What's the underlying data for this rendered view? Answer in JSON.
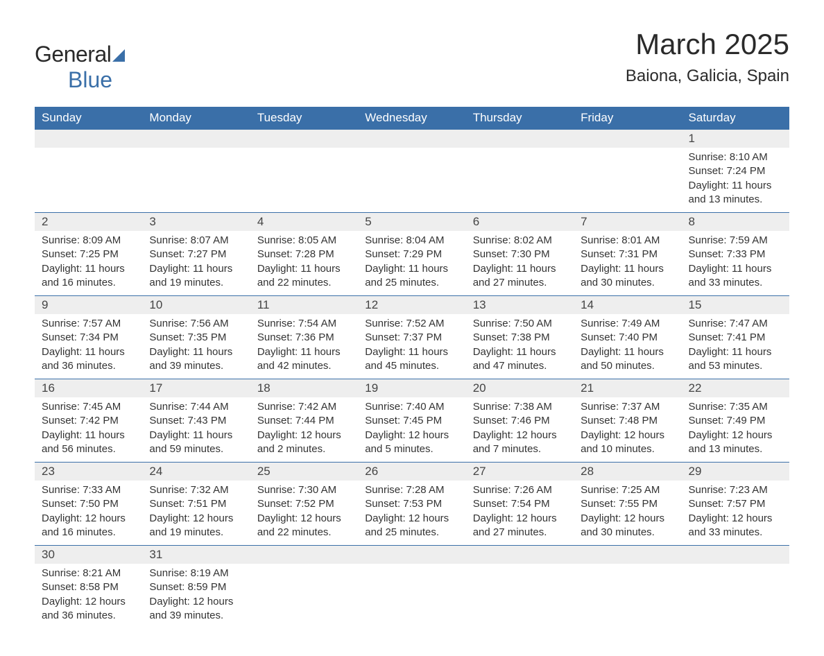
{
  "brand": {
    "general": "General",
    "blue": "Blue"
  },
  "title": "March 2025",
  "location": "Baiona, Galicia, Spain",
  "colors": {
    "header_bg": "#3a6fa8",
    "header_text": "#ffffff",
    "daynum_bg": "#eeeeee",
    "text": "#333333",
    "border": "#3a6fa8"
  },
  "weekdays": [
    "Sunday",
    "Monday",
    "Tuesday",
    "Wednesday",
    "Thursday",
    "Friday",
    "Saturday"
  ],
  "weeks": [
    [
      {
        "empty": true
      },
      {
        "empty": true
      },
      {
        "empty": true
      },
      {
        "empty": true
      },
      {
        "empty": true
      },
      {
        "empty": true
      },
      {
        "num": "1",
        "sunrise": "Sunrise: 8:10 AM",
        "sunset": "Sunset: 7:24 PM",
        "daylight": "Daylight: 11 hours and 13 minutes."
      }
    ],
    [
      {
        "num": "2",
        "sunrise": "Sunrise: 8:09 AM",
        "sunset": "Sunset: 7:25 PM",
        "daylight": "Daylight: 11 hours and 16 minutes."
      },
      {
        "num": "3",
        "sunrise": "Sunrise: 8:07 AM",
        "sunset": "Sunset: 7:27 PM",
        "daylight": "Daylight: 11 hours and 19 minutes."
      },
      {
        "num": "4",
        "sunrise": "Sunrise: 8:05 AM",
        "sunset": "Sunset: 7:28 PM",
        "daylight": "Daylight: 11 hours and 22 minutes."
      },
      {
        "num": "5",
        "sunrise": "Sunrise: 8:04 AM",
        "sunset": "Sunset: 7:29 PM",
        "daylight": "Daylight: 11 hours and 25 minutes."
      },
      {
        "num": "6",
        "sunrise": "Sunrise: 8:02 AM",
        "sunset": "Sunset: 7:30 PM",
        "daylight": "Daylight: 11 hours and 27 minutes."
      },
      {
        "num": "7",
        "sunrise": "Sunrise: 8:01 AM",
        "sunset": "Sunset: 7:31 PM",
        "daylight": "Daylight: 11 hours and 30 minutes."
      },
      {
        "num": "8",
        "sunrise": "Sunrise: 7:59 AM",
        "sunset": "Sunset: 7:33 PM",
        "daylight": "Daylight: 11 hours and 33 minutes."
      }
    ],
    [
      {
        "num": "9",
        "sunrise": "Sunrise: 7:57 AM",
        "sunset": "Sunset: 7:34 PM",
        "daylight": "Daylight: 11 hours and 36 minutes."
      },
      {
        "num": "10",
        "sunrise": "Sunrise: 7:56 AM",
        "sunset": "Sunset: 7:35 PM",
        "daylight": "Daylight: 11 hours and 39 minutes."
      },
      {
        "num": "11",
        "sunrise": "Sunrise: 7:54 AM",
        "sunset": "Sunset: 7:36 PM",
        "daylight": "Daylight: 11 hours and 42 minutes."
      },
      {
        "num": "12",
        "sunrise": "Sunrise: 7:52 AM",
        "sunset": "Sunset: 7:37 PM",
        "daylight": "Daylight: 11 hours and 45 minutes."
      },
      {
        "num": "13",
        "sunrise": "Sunrise: 7:50 AM",
        "sunset": "Sunset: 7:38 PM",
        "daylight": "Daylight: 11 hours and 47 minutes."
      },
      {
        "num": "14",
        "sunrise": "Sunrise: 7:49 AM",
        "sunset": "Sunset: 7:40 PM",
        "daylight": "Daylight: 11 hours and 50 minutes."
      },
      {
        "num": "15",
        "sunrise": "Sunrise: 7:47 AM",
        "sunset": "Sunset: 7:41 PM",
        "daylight": "Daylight: 11 hours and 53 minutes."
      }
    ],
    [
      {
        "num": "16",
        "sunrise": "Sunrise: 7:45 AM",
        "sunset": "Sunset: 7:42 PM",
        "daylight": "Daylight: 11 hours and 56 minutes."
      },
      {
        "num": "17",
        "sunrise": "Sunrise: 7:44 AM",
        "sunset": "Sunset: 7:43 PM",
        "daylight": "Daylight: 11 hours and 59 minutes."
      },
      {
        "num": "18",
        "sunrise": "Sunrise: 7:42 AM",
        "sunset": "Sunset: 7:44 PM",
        "daylight": "Daylight: 12 hours and 2 minutes."
      },
      {
        "num": "19",
        "sunrise": "Sunrise: 7:40 AM",
        "sunset": "Sunset: 7:45 PM",
        "daylight": "Daylight: 12 hours and 5 minutes."
      },
      {
        "num": "20",
        "sunrise": "Sunrise: 7:38 AM",
        "sunset": "Sunset: 7:46 PM",
        "daylight": "Daylight: 12 hours and 7 minutes."
      },
      {
        "num": "21",
        "sunrise": "Sunrise: 7:37 AM",
        "sunset": "Sunset: 7:48 PM",
        "daylight": "Daylight: 12 hours and 10 minutes."
      },
      {
        "num": "22",
        "sunrise": "Sunrise: 7:35 AM",
        "sunset": "Sunset: 7:49 PM",
        "daylight": "Daylight: 12 hours and 13 minutes."
      }
    ],
    [
      {
        "num": "23",
        "sunrise": "Sunrise: 7:33 AM",
        "sunset": "Sunset: 7:50 PM",
        "daylight": "Daylight: 12 hours and 16 minutes."
      },
      {
        "num": "24",
        "sunrise": "Sunrise: 7:32 AM",
        "sunset": "Sunset: 7:51 PM",
        "daylight": "Daylight: 12 hours and 19 minutes."
      },
      {
        "num": "25",
        "sunrise": "Sunrise: 7:30 AM",
        "sunset": "Sunset: 7:52 PM",
        "daylight": "Daylight: 12 hours and 22 minutes."
      },
      {
        "num": "26",
        "sunrise": "Sunrise: 7:28 AM",
        "sunset": "Sunset: 7:53 PM",
        "daylight": "Daylight: 12 hours and 25 minutes."
      },
      {
        "num": "27",
        "sunrise": "Sunrise: 7:26 AM",
        "sunset": "Sunset: 7:54 PM",
        "daylight": "Daylight: 12 hours and 27 minutes."
      },
      {
        "num": "28",
        "sunrise": "Sunrise: 7:25 AM",
        "sunset": "Sunset: 7:55 PM",
        "daylight": "Daylight: 12 hours and 30 minutes."
      },
      {
        "num": "29",
        "sunrise": "Sunrise: 7:23 AM",
        "sunset": "Sunset: 7:57 PM",
        "daylight": "Daylight: 12 hours and 33 minutes."
      }
    ],
    [
      {
        "num": "30",
        "sunrise": "Sunrise: 8:21 AM",
        "sunset": "Sunset: 8:58 PM",
        "daylight": "Daylight: 12 hours and 36 minutes."
      },
      {
        "num": "31",
        "sunrise": "Sunrise: 8:19 AM",
        "sunset": "Sunset: 8:59 PM",
        "daylight": "Daylight: 12 hours and 39 minutes."
      },
      {
        "empty": true
      },
      {
        "empty": true
      },
      {
        "empty": true
      },
      {
        "empty": true
      },
      {
        "empty": true
      }
    ]
  ]
}
